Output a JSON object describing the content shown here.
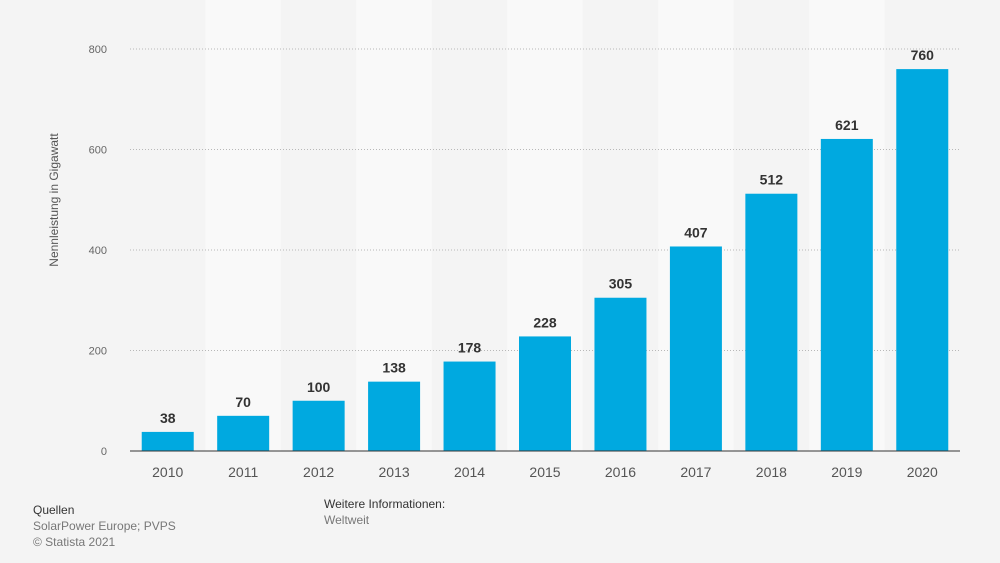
{
  "chart_data": {
    "type": "bar",
    "categories": [
      "2010",
      "2011",
      "2012",
      "2013",
      "2014",
      "2015",
      "2016",
      "2017",
      "2018",
      "2019",
      "2020"
    ],
    "values": [
      38,
      70,
      100,
      138,
      178,
      228,
      305,
      407,
      512,
      621,
      760
    ],
    "data_labels": [
      "38",
      "70",
      "100",
      "138",
      "178",
      "228",
      "305",
      "407",
      "512",
      "621",
      "760"
    ],
    "ylabel": "Nennleistung in Gigawatt",
    "xlabel": "",
    "ylim": [
      0,
      800
    ],
    "yticks": [
      0,
      200,
      400,
      600,
      800
    ],
    "ytick_labels": [
      "0",
      "200",
      "400",
      "600",
      "800"
    ],
    "grid": true,
    "bar_color": "#00a9e0",
    "value_label_color": "#333333"
  },
  "footer": {
    "sources_heading": "Quellen",
    "sources_text": "SolarPower Europe; PVPS",
    "copyright": "© Statista 2021",
    "info_heading": "Weitere Informationen:",
    "info_text": "Weltweit"
  }
}
